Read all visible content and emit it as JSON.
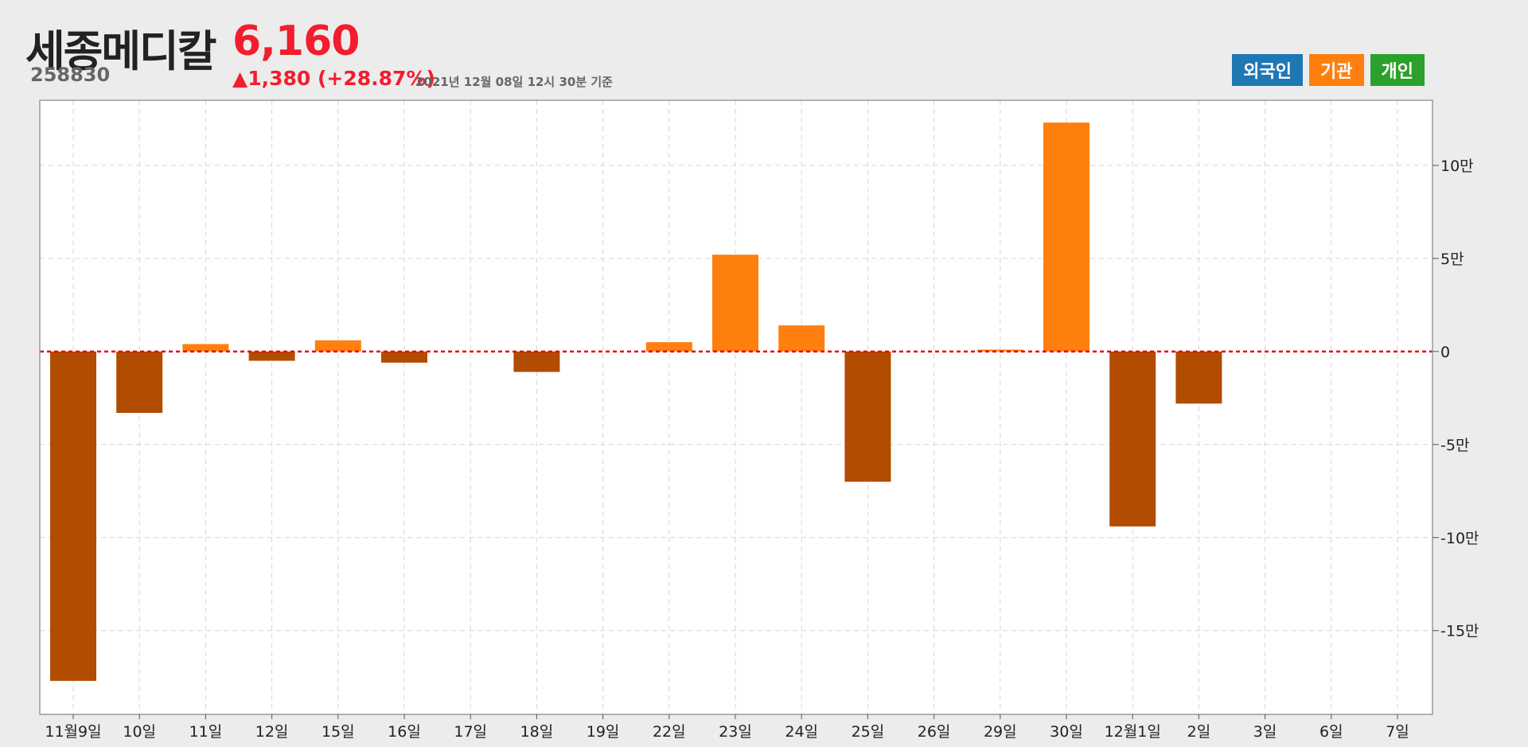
{
  "header": {
    "name": "세종메디칼",
    "code": "258830",
    "price": "6,160",
    "change": "▲1,380 (+28.87%)",
    "timestamp": "2021년 12월 08일 12시 30분 기준"
  },
  "legend": [
    {
      "id": "foreign",
      "label": "외국인",
      "color": "#1f77b4"
    },
    {
      "id": "institution",
      "label": "기관",
      "color": "#ff7f0e"
    },
    {
      "id": "individual",
      "label": "개인",
      "color": "#2ca02c"
    }
  ],
  "colors": {
    "positive": "#ff7f0e",
    "negative": "#b24c00",
    "zero_line": "#e8000b",
    "grid": "#d6d6d6"
  },
  "chart_data": {
    "type": "bar",
    "series_name": "기관",
    "categories": [
      "11월9일",
      "10일",
      "11일",
      "12일",
      "15일",
      "16일",
      "17일",
      "18일",
      "19일",
      "22일",
      "23일",
      "24일",
      "25일",
      "26일",
      "29일",
      "30일",
      "12월1일",
      "2일",
      "3일",
      "6일",
      "7일"
    ],
    "values": [
      -177000,
      -33000,
      4000,
      -5000,
      6000,
      -6000,
      0,
      -11000,
      0,
      5000,
      52000,
      14000,
      -70000,
      0,
      1000,
      123000,
      -94000,
      -28000,
      0,
      0,
      0
    ],
    "ylim": [
      -195000,
      135000
    ],
    "yticks": [
      {
        "value": 100000,
        "label": "10만"
      },
      {
        "value": 50000,
        "label": "5만"
      },
      {
        "value": 0,
        "label": "0"
      },
      {
        "value": -50000,
        "label": "-5만"
      },
      {
        "value": -100000,
        "label": "-10만"
      },
      {
        "value": -150000,
        "label": "-15만"
      }
    ],
    "grid": true,
    "axis_position": "right"
  }
}
